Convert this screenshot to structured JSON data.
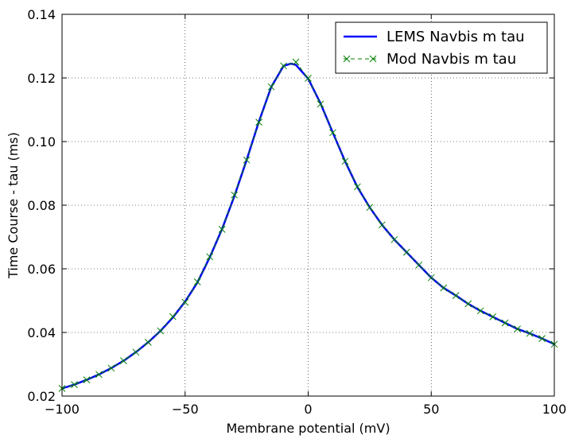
{
  "chart_data": {
    "type": "line",
    "title": "",
    "xlabel": "Membrane potential (mV)",
    "ylabel": "Time Course - tau (ms)",
    "xlim": [
      -100,
      100
    ],
    "ylim": [
      0.02,
      0.14
    ],
    "xticks": [
      -100,
      -50,
      0,
      50,
      100
    ],
    "xtick_labels": [
      "−100",
      "−50",
      "0",
      "50",
      "100"
    ],
    "yticks": [
      0.02,
      0.04,
      0.06,
      0.08,
      0.1,
      0.12,
      0.14
    ],
    "ytick_labels": [
      "0.02",
      "0.04",
      "0.06",
      "0.08",
      "0.10",
      "0.12",
      "0.14"
    ],
    "grid": true,
    "legend_position": "top-right",
    "series": [
      {
        "name": "LEMS Navbis m tau",
        "style": "solid-line",
        "color": "#0000ff",
        "x": [
          -100,
          -95,
          -90,
          -85,
          -80,
          -75,
          -70,
          -65,
          -60,
          -55,
          -50,
          -45,
          -40,
          -35,
          -30,
          -25,
          -20,
          -15,
          -10,
          -7,
          -5,
          0,
          5,
          10,
          15,
          20,
          25,
          30,
          35,
          40,
          45,
          50,
          55,
          60,
          65,
          70,
          75,
          80,
          85,
          90,
          95,
          100
        ],
        "y": [
          0.0224,
          0.0236,
          0.0251,
          0.0268,
          0.0288,
          0.0311,
          0.0338,
          0.0369,
          0.0405,
          0.0447,
          0.0497,
          0.0557,
          0.0636,
          0.0725,
          0.0828,
          0.0942,
          0.1063,
          0.1172,
          0.1238,
          0.1245,
          0.1241,
          0.1198,
          0.112,
          0.1028,
          0.0938,
          0.0857,
          0.0793,
          0.0738,
          0.0692,
          0.0652,
          0.0612,
          0.0572,
          0.054,
          0.0516,
          0.049,
          0.0468,
          0.0449,
          0.043,
          0.0411,
          0.0397,
          0.0381,
          0.0363
        ]
      },
      {
        "name": "Mod Navbis m tau",
        "style": "dashed-x-marker",
        "color": "#008000",
        "x": [
          -100,
          -95,
          -90,
          -85,
          -80,
          -75,
          -70,
          -65,
          -60,
          -55,
          -50,
          -45,
          -40,
          -35,
          -30,
          -25,
          -20,
          -15,
          -10,
          -5,
          0,
          5,
          10,
          15,
          20,
          25,
          30,
          35,
          40,
          45,
          50,
          55,
          60,
          65,
          70,
          75,
          80,
          85,
          90,
          95,
          100
        ],
        "y": [
          0.0224,
          0.0236,
          0.0251,
          0.0268,
          0.0288,
          0.0311,
          0.0338,
          0.0369,
          0.0405,
          0.045,
          0.0495,
          0.0559,
          0.0638,
          0.0724,
          0.0832,
          0.0942,
          0.1061,
          0.1172,
          0.1238,
          0.125,
          0.1199,
          0.1118,
          0.1028,
          0.0938,
          0.0858,
          0.0793,
          0.0738,
          0.0692,
          0.0652,
          0.0612,
          0.0572,
          0.054,
          0.0516,
          0.049,
          0.0468,
          0.0449,
          0.043,
          0.0411,
          0.0397,
          0.0381,
          0.0363
        ]
      }
    ]
  }
}
